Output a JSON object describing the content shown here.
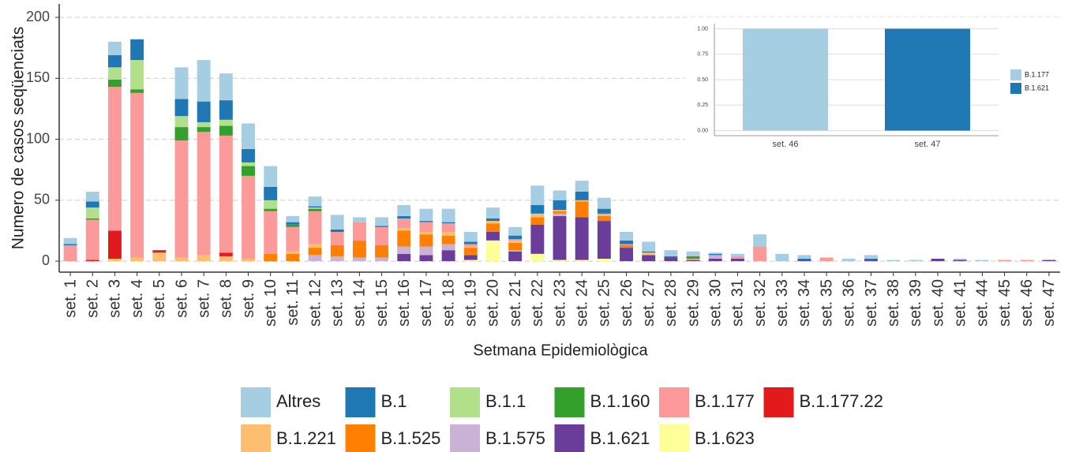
{
  "chart_data": [
    {
      "type": "bar",
      "stacked": true,
      "grid": true,
      "legend": "bottom",
      "x_label": "Setmana Epidemiològica",
      "y_label": "Numero de casos seqüenciats",
      "categories": [
        "set. 1",
        "set. 2",
        "set. 3",
        "set. 4",
        "set. 5",
        "set. 6",
        "set. 7",
        "set. 8",
        "set. 9",
        "set. 10",
        "set. 11",
        "set. 12",
        "set. 13",
        "set. 14",
        "set. 15",
        "set. 16",
        "set. 17",
        "set. 18",
        "set. 19",
        "set. 20",
        "set. 21",
        "set. 22",
        "set. 23",
        "set. 24",
        "set. 25",
        "set. 26",
        "set. 27",
        "set. 28",
        "set. 29",
        "set. 30",
        "set. 31",
        "set. 32",
        "set. 33",
        "set. 34",
        "set. 35",
        "set. 36",
        "set. 37",
        "set. 38",
        "set. 39",
        "set. 40",
        "set. 41",
        "set. 44",
        "set. 45",
        "set. 46",
        "set. 47"
      ],
      "ylim": [
        -9,
        211
      ],
      "yticks": [
        0,
        50,
        100,
        150,
        200
      ],
      "series": [
        {
          "name": "Altres",
          "color": "#a6cee3",
          "values": [
            5,
            8,
            11,
            0,
            0,
            26,
            34,
            22,
            21,
            17,
            5,
            8,
            12,
            4,
            7,
            9,
            10,
            11,
            8,
            9,
            7,
            16,
            8,
            9,
            9,
            7,
            8,
            5,
            4,
            1,
            2,
            10,
            6,
            3,
            0,
            2,
            3,
            1,
            1,
            0,
            1,
            1,
            0,
            0,
            0
          ]
        },
        {
          "name": "B.1",
          "color": "#1f78b4",
          "values": [
            1,
            5,
            10,
            17,
            0,
            14,
            17,
            16,
            11,
            11,
            2,
            1,
            2,
            0,
            1,
            2,
            1,
            1,
            2,
            2,
            3,
            7,
            8,
            7,
            4,
            3,
            1,
            1,
            0,
            1,
            0,
            0,
            0,
            1,
            0,
            0,
            1,
            0,
            0,
            0,
            0,
            0,
            0,
            0,
            0
          ]
        },
        {
          "name": "B.1.1",
          "color": "#b2df8a",
          "values": [
            0,
            9,
            10,
            24,
            0,
            9,
            4,
            5,
            3,
            7,
            0,
            1,
            0,
            0,
            0,
            0,
            0,
            0,
            0,
            0,
            0,
            0,
            0,
            0,
            0,
            0,
            0,
            0,
            0,
            0,
            0,
            0,
            0,
            0,
            0,
            0,
            0,
            0,
            0,
            0,
            0,
            0,
            0,
            0,
            0
          ]
        },
        {
          "name": "B.1.160",
          "color": "#33a02c",
          "values": [
            0,
            1,
            6,
            3,
            0,
            11,
            4,
            8,
            8,
            2,
            2,
            2,
            0,
            0,
            0,
            0,
            0,
            0,
            0,
            0,
            0,
            0,
            0,
            0,
            0,
            0,
            0,
            0,
            2,
            0,
            0,
            0,
            0,
            0,
            0,
            0,
            0,
            0,
            0,
            0,
            0,
            0,
            0,
            0,
            0
          ]
        },
        {
          "name": "B.1.177",
          "color": "#fb9a99",
          "values": [
            13,
            33,
            118,
            135,
            0,
            96,
            101,
            96,
            68,
            35,
            20,
            27,
            11,
            15,
            15,
            8,
            8,
            7,
            2,
            0,
            1,
            0,
            0,
            0,
            1,
            1,
            0,
            0,
            0,
            0,
            2,
            12,
            0,
            0,
            3,
            0,
            0,
            0,
            0,
            0,
            0,
            0,
            1,
            1,
            0
          ]
        },
        {
          "name": "B.1.177.22",
          "color": "#e31a1c",
          "values": [
            0,
            1,
            23,
            0,
            2,
            0,
            0,
            3,
            0,
            0,
            0,
            0,
            0,
            0,
            0,
            0,
            0,
            0,
            0,
            0,
            0,
            0,
            0,
            0,
            0,
            0,
            0,
            0,
            0,
            0,
            0,
            0,
            0,
            0,
            0,
            0,
            0,
            0,
            0,
            0,
            0,
            0,
            0,
            0,
            0
          ]
        },
        {
          "name": "B.1.221",
          "color": "#fdbf6f",
          "values": [
            0,
            0,
            2,
            3,
            7,
            3,
            5,
            4,
            2,
            0,
            2,
            3,
            0,
            0,
            0,
            2,
            2,
            3,
            1,
            2,
            2,
            3,
            1,
            1,
            1,
            0,
            2,
            0,
            1,
            0,
            0,
            0,
            0,
            0,
            0,
            0,
            0,
            0,
            0,
            0,
            0,
            0,
            0,
            0,
            0
          ]
        },
        {
          "name": "B.1.525",
          "color": "#ff7f00",
          "values": [
            0,
            0,
            0,
            0,
            0,
            0,
            0,
            0,
            0,
            6,
            6,
            6,
            9,
            14,
            10,
            13,
            10,
            7,
            6,
            7,
            6,
            6,
            2,
            13,
            4,
            2,
            0,
            0,
            0,
            0,
            0,
            0,
            0,
            0,
            0,
            0,
            0,
            0,
            0,
            0,
            0,
            0,
            0,
            0,
            0
          ]
        },
        {
          "name": "B.1.575",
          "color": "#cab2d6",
          "values": [
            0,
            0,
            0,
            0,
            0,
            0,
            0,
            0,
            0,
            0,
            0,
            5,
            4,
            3,
            3,
            6,
            7,
            5,
            0,
            0,
            1,
            0,
            2,
            0,
            0,
            0,
            0,
            0,
            0,
            3,
            0,
            0,
            0,
            0,
            0,
            0,
            0,
            0,
            0,
            0,
            0,
            0,
            0,
            0,
            0
          ]
        },
        {
          "name": "B.1.621",
          "color": "#6a3d9a",
          "values": [
            0,
            0,
            0,
            0,
            0,
            0,
            0,
            0,
            0,
            0,
            0,
            0,
            0,
            0,
            0,
            6,
            5,
            9,
            4,
            7,
            8,
            24,
            36,
            35,
            31,
            11,
            5,
            3,
            1,
            2,
            2,
            0,
            0,
            1,
            0,
            0,
            1,
            0,
            0,
            2,
            1,
            0,
            0,
            0,
            1
          ]
        },
        {
          "name": "B.1.623",
          "color": "#ffff99",
          "values": [
            0,
            0,
            0,
            0,
            0,
            0,
            0,
            0,
            0,
            0,
            0,
            0,
            0,
            0,
            0,
            0,
            0,
            0,
            1,
            17,
            0,
            6,
            1,
            1,
            2,
            0,
            0,
            0,
            0,
            0,
            0,
            0,
            0,
            0,
            0,
            0,
            0,
            0,
            0,
            0,
            0,
            0,
            0,
            0,
            0
          ]
        }
      ]
    },
    {
      "type": "bar",
      "stacked": true,
      "grid": true,
      "legend": "right",
      "categories": [
        "set. 46",
        "set. 47"
      ],
      "ylim": [
        -0.05,
        1.05
      ],
      "yticks": [
        {
          "value": 0,
          "label": "0.00"
        },
        0.25,
        {
          "value": 0.5,
          "label": "0.50"
        },
        0.75,
        {
          "value": 1,
          "label": "1.00"
        }
      ],
      "series": [
        {
          "name": "B.1.177",
          "color": "#a6cee3",
          "values": [
            1,
            0
          ]
        },
        {
          "name": "B.1.621",
          "color": "#1f78b4",
          "values": [
            0,
            1
          ]
        }
      ]
    }
  ]
}
